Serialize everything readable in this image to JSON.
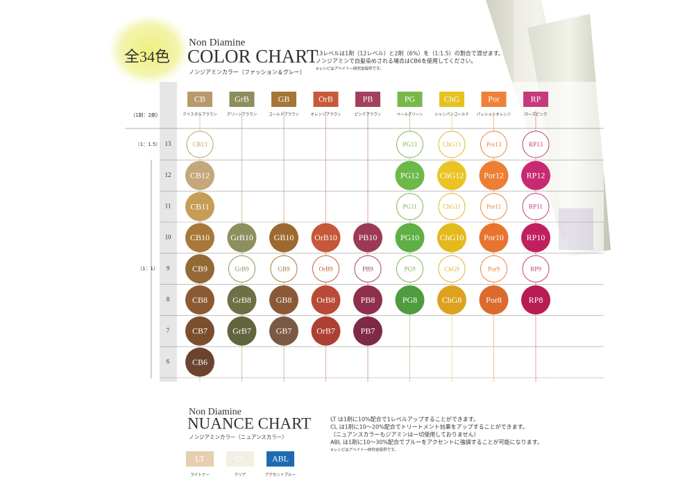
{
  "badge": "全34色",
  "color_chart": {
    "title_small": "Non Diamine",
    "title": "COLOR CHART",
    "subtitle": "ノンジアミンカラー（ファッション＆グレー）",
    "notes": [
      "13レベルは1剤（12レベル）と2剤（6%）を（1:1.5）の割合で混ぜます。",
      "ノンジアミンで白髪染めされる場合はCB6を使用してください。",
      "※レシピはアベイト一研究会提供です。"
    ],
    "ratio_header": "（1剤：2剤）",
    "ratio_labels": [
      {
        "level_row": 0,
        "label": "（1：1.5）"
      },
      {
        "level_row": 4,
        "label": "（1：1）"
      }
    ],
    "levels": [
      "13",
      "12",
      "11",
      "10",
      "9",
      "8",
      "7",
      "6"
    ],
    "columns": [
      {
        "code": "CB",
        "name": "クリスタルブラウン",
        "color": "#b8996a",
        "cells": [
          {
            "label": "CB13",
            "outline": true,
            "color": "#c49a60"
          },
          {
            "label": "CB12",
            "color": "#c4a77a"
          },
          {
            "label": "CB11",
            "color": "#c59d55"
          },
          {
            "label": "CB10",
            "color": "#a9773a"
          },
          {
            "label": "CB9",
            "color": "#946935"
          },
          {
            "label": "CB8",
            "color": "#8b5a34"
          },
          {
            "label": "CB7",
            "color": "#7b4f2e"
          },
          {
            "label": "CB6",
            "color": "#6b4430"
          }
        ]
      },
      {
        "code": "GrB",
        "name": "グリーンブラウン",
        "color": "#8e8d5c",
        "cells": [
          null,
          null,
          null,
          {
            "label": "GrB10",
            "color": "#8e8f5e"
          },
          {
            "label": "GrB9",
            "outline": true,
            "color": "#8e8f5e"
          },
          {
            "label": "GrB8",
            "color": "#6e6f44"
          },
          {
            "label": "GrB7",
            "color": "#62643e"
          },
          null
        ]
      },
      {
        "code": "GB",
        "name": "ゴールドブラウン",
        "color": "#a47534",
        "cells": [
          null,
          null,
          null,
          {
            "label": "GB10",
            "color": "#9c6a30"
          },
          {
            "label": "GB9",
            "outline": true,
            "color": "#a47534"
          },
          {
            "label": "GB8",
            "color": "#8a5a38"
          },
          {
            "label": "GB7",
            "color": "#7a5a45"
          },
          null
        ]
      },
      {
        "code": "OrB",
        "name": "オレンジブラウン",
        "color": "#c85a3a",
        "cells": [
          null,
          null,
          null,
          {
            "label": "OrB10",
            "color": "#c6573a"
          },
          {
            "label": "OrB9",
            "outline": true,
            "color": "#c85a3a"
          },
          {
            "label": "OrB8",
            "color": "#b84a37"
          },
          {
            "label": "OrB7",
            "color": "#ad4033"
          },
          null
        ]
      },
      {
        "code": "PB",
        "name": "ピンクブラウン",
        "color": "#a3405d",
        "cells": [
          null,
          null,
          null,
          {
            "label": "PB10",
            "color": "#9c3a55"
          },
          {
            "label": "PB9",
            "outline": true,
            "color": "#a3405d"
          },
          {
            "label": "PB8",
            "color": "#8e2f4c"
          },
          {
            "label": "PB7",
            "color": "#7f2a44"
          },
          null
        ]
      },
      {
        "code": "PG",
        "name": "ペールグリーン",
        "color": "#78b84a",
        "cells": [
          {
            "label": "PG13",
            "outline": true,
            "color": "#78b84a"
          },
          {
            "label": "PG12",
            "color": "#6cb94a"
          },
          {
            "label": "PG11",
            "outline": true,
            "color": "#78b84a"
          },
          {
            "label": "PG10",
            "color": "#5faf44"
          },
          {
            "label": "PG9",
            "outline": true,
            "color": "#78b84a"
          },
          {
            "label": "PG8",
            "color": "#4e9c3e"
          },
          null,
          null
        ]
      },
      {
        "code": "ChG",
        "name": "シャンパンゴールド",
        "color": "#e5c21e",
        "cells": [
          {
            "label": "ChG13",
            "outline": true,
            "color": "#e0b52a"
          },
          {
            "label": "ChG12",
            "color": "#ebc424"
          },
          {
            "label": "ChG11",
            "outline": true,
            "color": "#e0b52a"
          },
          {
            "label": "ChG10",
            "color": "#e4b91e"
          },
          {
            "label": "ChG9",
            "outline": true,
            "color": "#e0b52a"
          },
          {
            "label": "ChG8",
            "color": "#dca21e"
          },
          null,
          null
        ]
      },
      {
        "code": "Por",
        "name": "パッションオレンジ",
        "color": "#ee8139",
        "cells": [
          {
            "label": "Por13",
            "outline": true,
            "color": "#ee8139"
          },
          {
            "label": "Por12",
            "color": "#ed7f34"
          },
          {
            "label": "Por11",
            "outline": true,
            "color": "#ee8139"
          },
          {
            "label": "Por10",
            "color": "#e6742f"
          },
          {
            "label": "Por9",
            "outline": true,
            "color": "#ee8139"
          },
          {
            "label": "Por8",
            "color": "#dc6a2c"
          },
          null,
          null
        ]
      },
      {
        "code": "RP",
        "name": "ローズピンク",
        "color": "#c53a7b",
        "cells": [
          {
            "label": "RP13",
            "outline": true,
            "color": "#c53a7b"
          },
          {
            "label": "RP12",
            "color": "#c82a72"
          },
          {
            "label": "RP11",
            "outline": true,
            "color": "#c53a7b"
          },
          {
            "label": "RP10",
            "color": "#c0205f"
          },
          {
            "label": "RP9",
            "outline": true,
            "color": "#c53a7b"
          },
          {
            "label": "RP8",
            "color": "#b91c53"
          },
          null,
          null
        ]
      }
    ]
  },
  "nuance_chart": {
    "title_small": "Non Diamine",
    "title": "NUANCE CHART",
    "subtitle": "ノンジアミンカラー（ニュアンスカラー）",
    "notes": [
      "LT は1剤に10%配合で1レベルアップすることができます。",
      "CL は1剤に10～20%配合でトリートメント効果をアップすることができます。",
      "（ニュアンスカラーもジアミンは一切使用しておりません）",
      "ABL は1剤に10～30%配合でブルーをアクセントに強調することが可能になります。",
      "※レシピはアベイト一研究会提供です。"
    ],
    "swatches": [
      {
        "code": "LT",
        "name": "ライトナー",
        "color": "#e6cfb0"
      },
      {
        "code": "CL",
        "name": "クリア",
        "color": "#f3efe2"
      },
      {
        "code": "ABL",
        "name": "アクセントブルー",
        "color": "#1d6ab3"
      }
    ]
  }
}
